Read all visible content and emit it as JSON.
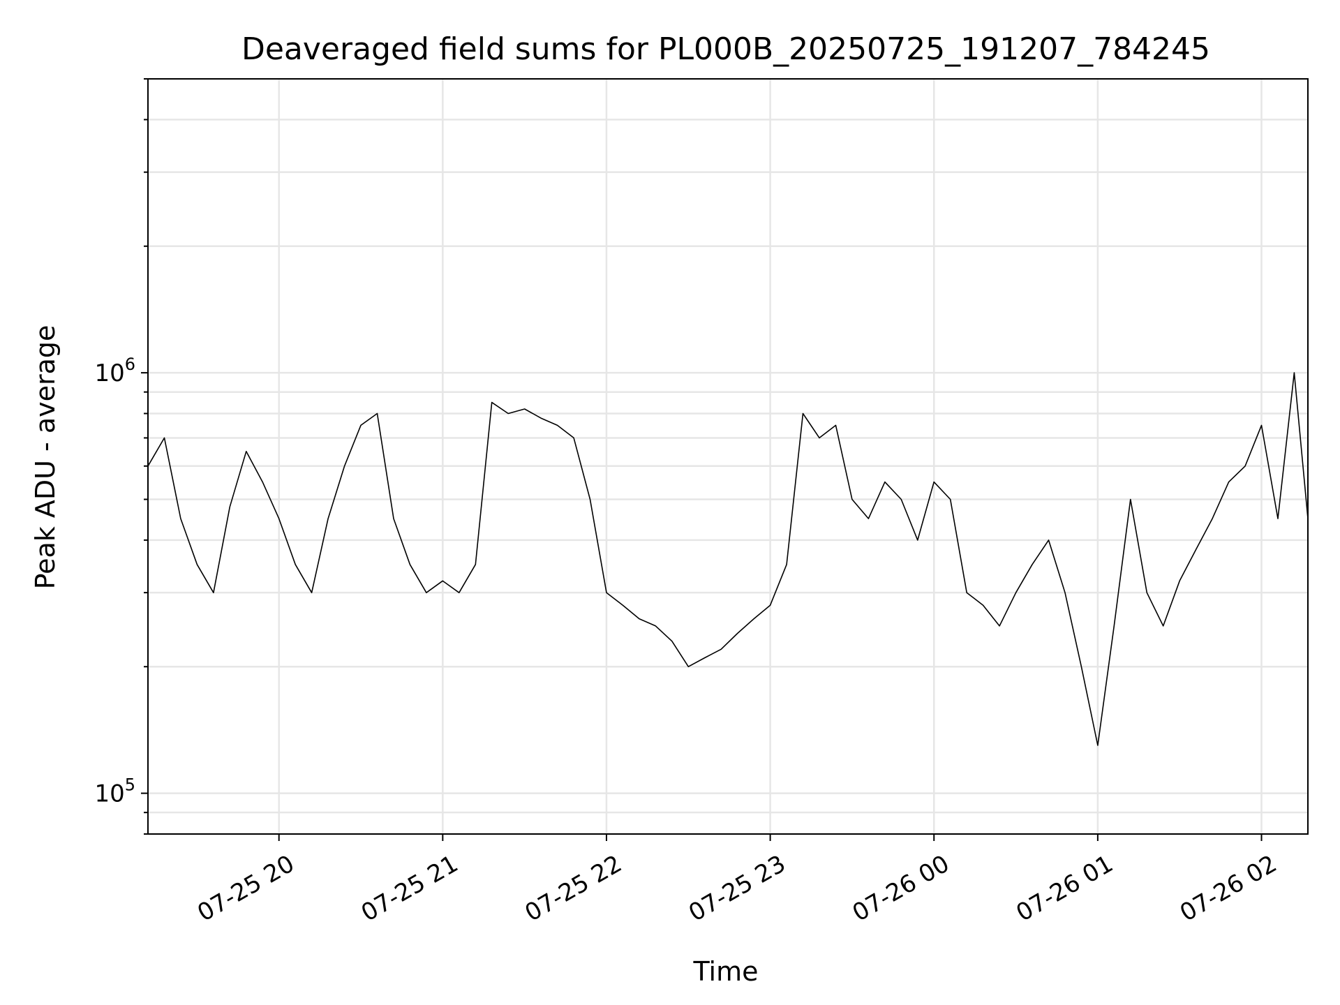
{
  "chart_data": {
    "type": "line",
    "title": "Deaveraged field sums for PL000B_20250725_191207_784245",
    "xlabel": "Time",
    "ylabel": "Peak ADU - average",
    "yscale": "log",
    "grid": true,
    "line_color": "#000000",
    "x_ticks": [
      "07-25 20",
      "07-25 21",
      "07-25 22",
      "07-25 23",
      "07-26 00",
      "07-26 01",
      "07-26 02"
    ],
    "y_ticks": [
      {
        "base": "10",
        "exp": "5",
        "value": 100000
      },
      {
        "base": "10",
        "exp": "6",
        "value": 1000000
      }
    ],
    "xlim": [
      "2025-07-25 19:12",
      "2025-07-26 02:17"
    ],
    "ylim": [
      80000,
      5000000
    ],
    "series": [
      {
        "x": [
          "2025-07-25 19:12",
          "2025-07-25 19:18",
          "2025-07-25 19:24",
          "2025-07-25 19:30",
          "2025-07-25 19:36",
          "2025-07-25 19:42",
          "2025-07-25 19:48",
          "2025-07-25 19:54",
          "2025-07-25 20:00",
          "2025-07-25 20:06",
          "2025-07-25 20:12",
          "2025-07-25 20:18",
          "2025-07-25 20:24",
          "2025-07-25 20:30",
          "2025-07-25 20:36",
          "2025-07-25 20:42",
          "2025-07-25 20:48",
          "2025-07-25 20:54",
          "2025-07-25 21:00",
          "2025-07-25 21:06",
          "2025-07-25 21:12",
          "2025-07-25 21:18",
          "2025-07-25 21:24",
          "2025-07-25 21:30",
          "2025-07-25 21:36",
          "2025-07-25 21:42",
          "2025-07-25 21:48",
          "2025-07-25 21:54",
          "2025-07-25 22:00",
          "2025-07-25 22:06",
          "2025-07-25 22:12",
          "2025-07-25 22:18",
          "2025-07-25 22:24",
          "2025-07-25 22:30",
          "2025-07-25 22:36",
          "2025-07-25 22:42",
          "2025-07-25 22:48",
          "2025-07-25 22:54",
          "2025-07-25 23:00",
          "2025-07-25 23:06",
          "2025-07-25 23:12",
          "2025-07-25 23:18",
          "2025-07-25 23:24",
          "2025-07-25 23:30",
          "2025-07-25 23:36",
          "2025-07-25 23:42",
          "2025-07-25 23:48",
          "2025-07-25 23:54",
          "2025-07-26 00:00",
          "2025-07-26 00:06",
          "2025-07-26 00:12",
          "2025-07-26 00:18",
          "2025-07-26 00:24",
          "2025-07-26 00:30",
          "2025-07-26 00:36",
          "2025-07-26 00:42",
          "2025-07-26 00:48",
          "2025-07-26 00:54",
          "2025-07-26 01:00",
          "2025-07-26 01:06",
          "2025-07-26 01:12",
          "2025-07-26 01:18",
          "2025-07-26 01:24",
          "2025-07-26 01:30",
          "2025-07-26 01:36",
          "2025-07-26 01:42",
          "2025-07-26 01:48",
          "2025-07-26 01:54",
          "2025-07-26 02:00",
          "2025-07-26 02:06",
          "2025-07-26 02:12",
          "2025-07-26 02:17"
        ],
        "y": [
          600000,
          700000,
          450000,
          350000,
          300000,
          480000,
          650000,
          550000,
          450000,
          350000,
          300000,
          450000,
          600000,
          750000,
          800000,
          450000,
          350000,
          300000,
          320000,
          300000,
          350000,
          850000,
          800000,
          820000,
          780000,
          750000,
          700000,
          500000,
          300000,
          280000,
          260000,
          250000,
          230000,
          200000,
          210000,
          220000,
          240000,
          260000,
          280000,
          350000,
          800000,
          700000,
          750000,
          500000,
          450000,
          550000,
          500000,
          400000,
          550000,
          500000,
          300000,
          280000,
          250000,
          300000,
          350000,
          400000,
          300000,
          200000,
          130000,
          250000,
          500000,
          300000,
          250000,
          320000,
          380000,
          450000,
          550000,
          600000,
          750000,
          450000,
          1000000,
          450000
        ]
      }
    ]
  }
}
